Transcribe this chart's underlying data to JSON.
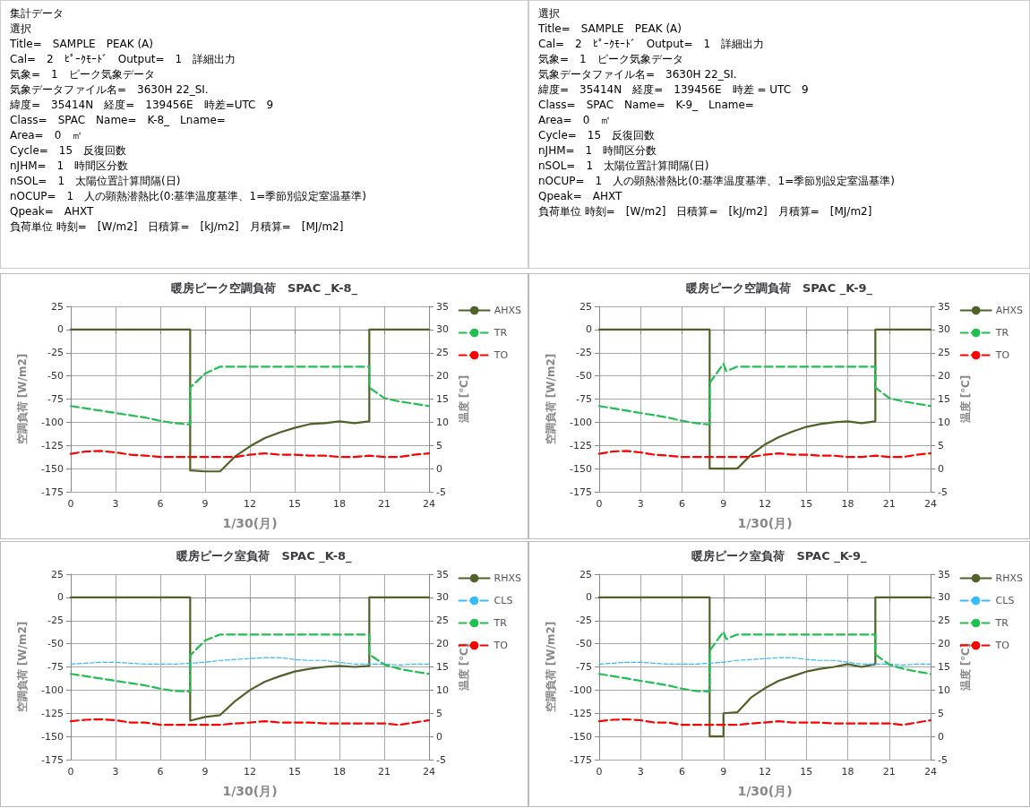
{
  "chart_data": [
    {
      "type": "other",
      "annotations": [
        "集計データ",
        "選択",
        "Title=　SAMPLE　PEAK (A)",
        "Cal=　2　ﾋﾟｰｸﾓｰﾄﾞ　Output=　1　詳細出力",
        "気象=　1　ピーク気象データ",
        "気象データファイル名=　3630H 22_SI.",
        "緯度=　35414N　経度=　139456E　時差=UTC　9",
        "Class=　SPAC　Name=　K-8_　Lname=",
        "Area=　0　㎡",
        "Cycle=　15　反復回数",
        "nJHM=　1　時間区分数",
        "nSOL=　1　太陽位置計算間隔(日)",
        "nOCUP=　1　人の顕熱潜熱比(0:基準温度基準、1=季節別設定室温基準)",
        "Qpeak=　AHXT",
        "負荷単位 時刻=　[W/m2]　日積算=　[kJ/m2]　月積算=　[MJ/m2]"
      ]
    },
    {
      "type": "other",
      "annotations": [
        "選択",
        "Title=　SAMPLE　PEAK (A)",
        "Cal=　2　ﾋﾟｰｸﾓｰﾄﾞ　Output=　1　詳細出力",
        "気象=　1　ピーク気象データ",
        "気象データファイル名=　3630H 22_SI.",
        "緯度=　35414N　経度=　139456E　時差 = UTC　9",
        "Class=　SPAC　Name=　K-9_　Lname=",
        "Area=　0　㎡",
        "Cycle=　15　反復回数",
        "nJHM=　1　時間区分数",
        "nSOL=　1　太陽位置計算間隔(日)",
        "nOCUP=　1　人の顕熱潜熱比(0:基準温度基準、1=季節別設定室温基準)",
        "Qpeak=　AHXT",
        "負荷単位 時刻=　[W/m2]　日積算=　[kJ/m2]　月積算=　[MJ/m2]"
      ]
    },
    {
      "type": "line",
      "title": "暖房ピーク空調負荷　SPAC _K-8_",
      "xlabel": "1/30(月)",
      "ylabel": "空調負荷 [W/m2]",
      "y2label": "温度 [℃]",
      "xlim": [
        0,
        24
      ],
      "xticks": [
        0,
        3,
        6,
        9,
        12,
        15,
        18,
        21,
        24
      ],
      "ylim": [
        -175,
        25
      ],
      "yticks": [
        -175,
        -150,
        -125,
        -100,
        -75,
        -50,
        -25,
        0,
        25
      ],
      "y2lim": [
        -5,
        35
      ],
      "y2ticks": [
        -5,
        0,
        5,
        10,
        15,
        20,
        25,
        30,
        35
      ],
      "grid": true,
      "legend": "right",
      "marker": "none",
      "series": [
        {
          "name": "AHXS",
          "color": "#4f6228",
          "line_style": "solid",
          "x": [
            0,
            1,
            2,
            3,
            4,
            5,
            6,
            7,
            8,
            8,
            9,
            10,
            11,
            12,
            13,
            14,
            15,
            16,
            17,
            18,
            19,
            20,
            20,
            21,
            22,
            23,
            24
          ],
          "values": [
            0,
            0,
            0,
            0,
            0,
            0,
            0,
            0,
            0,
            -152,
            -153,
            -153,
            -137,
            -126,
            -117,
            -111,
            -106,
            -102,
            -101,
            -99,
            -101,
            -99,
            0,
            0,
            0,
            0,
            0
          ]
        },
        {
          "name": "TR",
          "color": "#1fbf50",
          "line_style": "dashed",
          "axis": "y2",
          "x": [
            0,
            1,
            2,
            3,
            4,
            5,
            6,
            7,
            8,
            8,
            9,
            10,
            11,
            12,
            13,
            14,
            15,
            16,
            17,
            18,
            19,
            20,
            20,
            21,
            22,
            23,
            24
          ],
          "values": [
            13.5,
            13,
            12.5,
            12,
            11.5,
            11,
            10.3,
            9.8,
            9.5,
            17.5,
            20.5,
            22,
            22,
            22,
            22,
            22,
            22,
            22,
            22,
            22,
            22,
            22,
            17.5,
            15.2,
            14.5,
            14,
            13.5
          ]
        },
        {
          "name": "TO",
          "color": "#ff0000",
          "line_style": "dashed",
          "axis": "y2",
          "x": [
            0,
            1,
            2,
            3,
            4,
            5,
            6,
            7,
            8,
            9,
            10,
            11,
            12,
            13,
            14,
            15,
            16,
            17,
            18,
            19,
            20,
            21,
            22,
            23,
            24
          ],
          "values": [
            3.2,
            3.7,
            3.8,
            3.5,
            3,
            2.8,
            2.5,
            2.5,
            2.5,
            2.5,
            2.5,
            2.5,
            3,
            3.3,
            3,
            3,
            2.8,
            2.8,
            2.5,
            2.5,
            2.8,
            2.5,
            2.5,
            3,
            3.3
          ]
        }
      ]
    },
    {
      "type": "line",
      "title": "暖房ピーク空調負荷　SPAC _K-9_",
      "xlabel": "1/30(月)",
      "ylabel": "空調負荷 [W/m2]",
      "y2label": "温度 [℃]",
      "xlim": [
        0,
        24
      ],
      "xticks": [
        0,
        3,
        6,
        9,
        12,
        15,
        18,
        21,
        24
      ],
      "ylim": [
        -175,
        25
      ],
      "yticks": [
        -175,
        -150,
        -125,
        -100,
        -75,
        -50,
        -25,
        0,
        25
      ],
      "y2lim": [
        -5,
        35
      ],
      "y2ticks": [
        -5,
        0,
        5,
        10,
        15,
        20,
        25,
        30,
        35
      ],
      "grid": true,
      "legend": "right",
      "marker": "none",
      "series": [
        {
          "name": "AHXS",
          "color": "#4f6228",
          "line_style": "solid",
          "x": [
            0,
            1,
            2,
            3,
            4,
            5,
            6,
            7,
            8,
            8,
            9,
            10,
            11,
            12,
            13,
            14,
            15,
            16,
            17,
            18,
            19,
            20,
            20,
            21,
            22,
            23,
            24
          ],
          "values": [
            0,
            0,
            0,
            0,
            0,
            0,
            0,
            0,
            0,
            -150,
            -150,
            -150,
            -135,
            -124,
            -116,
            -110,
            -105,
            -102,
            -100,
            -99,
            -101,
            -99,
            0,
            0,
            0,
            0,
            0
          ]
        },
        {
          "name": "TR",
          "color": "#1fbf50",
          "line_style": "dashed",
          "axis": "y2",
          "x": [
            0,
            1,
            2,
            3,
            4,
            5,
            6,
            7,
            8,
            8,
            9,
            9.2,
            10,
            11,
            12,
            13,
            14,
            15,
            16,
            17,
            18,
            19,
            20,
            20,
            21,
            22,
            23,
            24
          ],
          "values": [
            13.5,
            13,
            12.5,
            12,
            11.5,
            11,
            10.3,
            9.8,
            9.5,
            18.5,
            22.6,
            21,
            22,
            22,
            22,
            22,
            22,
            22,
            22,
            22,
            22,
            22,
            22,
            17.5,
            15.2,
            14.5,
            14,
            13.5
          ]
        },
        {
          "name": "TO",
          "color": "#ff0000",
          "line_style": "dashed",
          "axis": "y2",
          "x": [
            0,
            1,
            2,
            3,
            4,
            5,
            6,
            7,
            8,
            9,
            10,
            11,
            12,
            13,
            14,
            15,
            16,
            17,
            18,
            19,
            20,
            21,
            22,
            23,
            24
          ],
          "values": [
            3.2,
            3.7,
            3.8,
            3.5,
            3,
            2.8,
            2.5,
            2.5,
            2.5,
            2.5,
            2.5,
            2.5,
            3,
            3.3,
            3,
            3,
            2.8,
            2.8,
            2.5,
            2.5,
            2.8,
            2.5,
            2.5,
            3,
            3.3
          ]
        }
      ]
    },
    {
      "type": "line",
      "title": "暖房ピーク室負荷　SPAC _K-8_",
      "xlabel": "1/30(月)",
      "ylabel": "空調負荷 [W/m2]",
      "y2label": "温度 [℃]",
      "xlim": [
        0,
        24
      ],
      "xticks": [
        0,
        3,
        6,
        9,
        12,
        15,
        18,
        21,
        24
      ],
      "ylim": [
        -175,
        25
      ],
      "yticks": [
        -175,
        -150,
        -125,
        -100,
        -75,
        -50,
        -25,
        0,
        25
      ],
      "y2lim": [
        -5,
        35
      ],
      "y2ticks": [
        -5,
        0,
        5,
        10,
        15,
        20,
        25,
        30,
        35
      ],
      "grid": true,
      "legend": "right",
      "marker": "none",
      "series": [
        {
          "name": "RHXS",
          "color": "#4f6228",
          "line_style": "solid",
          "x": [
            0,
            1,
            2,
            3,
            4,
            5,
            6,
            7,
            8,
            8,
            9,
            10,
            11,
            12,
            13,
            14,
            15,
            16,
            17,
            18,
            19,
            20,
            20,
            21,
            22,
            23,
            24
          ],
          "values": [
            0,
            0,
            0,
            0,
            0,
            0,
            0,
            0,
            0,
            -133,
            -129,
            -127,
            -112,
            -100,
            -91,
            -85,
            -80,
            -77,
            -75,
            -74,
            -75,
            -74,
            0,
            0,
            0,
            0,
            0
          ]
        },
        {
          "name": "CLS",
          "color": "#33bbff",
          "line_style": "dashed",
          "x": [
            0,
            1,
            2,
            3,
            4,
            5,
            6,
            7,
            8,
            9,
            10,
            11,
            12,
            13,
            14,
            15,
            16,
            17,
            18,
            19,
            20,
            21,
            22,
            23,
            24
          ],
          "values": [
            -72,
            -71,
            -70,
            -70,
            -71,
            -72,
            -72,
            -72,
            -71,
            -70,
            -68,
            -67,
            -66,
            -65,
            -65,
            -67,
            -68,
            -68,
            -70,
            -72,
            -72,
            -72,
            -73,
            -72,
            -72
          ]
        },
        {
          "name": "TR",
          "color": "#1fbf50",
          "line_style": "dashed",
          "axis": "y2",
          "x": [
            0,
            1,
            2,
            3,
            4,
            5,
            6,
            7,
            8,
            8,
            9,
            10,
            11,
            12,
            13,
            14,
            15,
            16,
            17,
            18,
            19,
            20,
            20,
            21,
            22,
            23,
            24
          ],
          "values": [
            13.5,
            13,
            12.5,
            12,
            11.5,
            11,
            10.3,
            9.8,
            9.7,
            17.5,
            20.7,
            22,
            22,
            22,
            22,
            22,
            22,
            22,
            22,
            22,
            22,
            22,
            17.7,
            15.5,
            14.6,
            14,
            13.5
          ]
        },
        {
          "name": "TO",
          "color": "#ff0000",
          "line_style": "dashed",
          "axis": "y2",
          "x": [
            0,
            1,
            2,
            3,
            4,
            5,
            6,
            7,
            8,
            9,
            10,
            11,
            12,
            13,
            14,
            15,
            16,
            17,
            18,
            19,
            20,
            21,
            22,
            23,
            24
          ],
          "values": [
            3.3,
            3.6,
            3.7,
            3.5,
            3,
            3,
            2.5,
            2.5,
            2.5,
            2.5,
            2.5,
            2.8,
            3,
            3.3,
            3,
            3,
            3,
            2.8,
            2.8,
            2.8,
            2.8,
            2.8,
            2.5,
            3,
            3.5
          ]
        }
      ]
    },
    {
      "type": "line",
      "title": "暖房ピーク室負荷　SPAC _K-9_",
      "xlabel": "1/30(月)",
      "ylabel": "空調負荷 [W/m2]",
      "y2label": "温度 [℃]",
      "xlim": [
        0,
        24
      ],
      "xticks": [
        0,
        3,
        6,
        9,
        12,
        15,
        18,
        21,
        24
      ],
      "ylim": [
        -175,
        25
      ],
      "yticks": [
        -175,
        -150,
        -125,
        -100,
        -75,
        -50,
        -25,
        0,
        25
      ],
      "y2lim": [
        -5,
        35
      ],
      "y2ticks": [
        -5,
        0,
        5,
        10,
        15,
        20,
        25,
        30,
        35
      ],
      "grid": true,
      "legend": "right",
      "marker": "none",
      "series": [
        {
          "name": "RHXS",
          "color": "#4f6228",
          "line_style": "solid",
          "x": [
            0,
            1,
            2,
            3,
            4,
            5,
            6,
            7,
            8,
            8,
            9,
            9,
            10,
            11,
            12,
            13,
            14,
            15,
            16,
            17,
            18,
            19,
            20,
            20,
            21,
            22,
            23,
            24
          ],
          "values": [
            0,
            0,
            0,
            0,
            0,
            0,
            0,
            0,
            0,
            -150,
            -150,
            -125,
            -124,
            -108,
            -98,
            -90,
            -85,
            -80,
            -77,
            -75,
            -72,
            -75,
            -72,
            0,
            0,
            0,
            0,
            0
          ]
        },
        {
          "name": "CLS",
          "color": "#33bbff",
          "line_style": "dashed",
          "x": [
            0,
            1,
            2,
            3,
            4,
            5,
            6,
            7,
            8,
            9,
            10,
            11,
            12,
            13,
            14,
            15,
            16,
            17,
            18,
            19,
            20,
            21,
            22,
            23,
            24
          ],
          "values": [
            -72,
            -71,
            -70,
            -70,
            -71,
            -72,
            -72,
            -72,
            -71,
            -70,
            -68,
            -67,
            -66,
            -65,
            -65,
            -67,
            -68,
            -68,
            -70,
            -72,
            -72,
            -72,
            -73,
            -72,
            -72
          ]
        },
        {
          "name": "TR",
          "color": "#1fbf50",
          "line_style": "dashed",
          "axis": "y2",
          "x": [
            0,
            1,
            2,
            3,
            4,
            5,
            6,
            7,
            8,
            8,
            9,
            9.2,
            10,
            11,
            12,
            13,
            14,
            15,
            16,
            17,
            18,
            19,
            20,
            20,
            21,
            22,
            23,
            24
          ],
          "values": [
            13.5,
            13,
            12.5,
            12,
            11.5,
            11,
            10.3,
            9.8,
            9.7,
            18.5,
            22.6,
            21,
            22,
            22,
            22,
            22,
            22,
            22,
            22,
            22,
            22,
            22,
            22,
            17.7,
            15.5,
            14.6,
            14,
            13.5
          ]
        },
        {
          "name": "TO",
          "color": "#ff0000",
          "line_style": "dashed",
          "axis": "y2",
          "x": [
            0,
            1,
            2,
            3,
            4,
            5,
            6,
            7,
            8,
            9,
            10,
            11,
            12,
            13,
            14,
            15,
            16,
            17,
            18,
            19,
            20,
            21,
            22,
            23,
            24
          ],
          "values": [
            3.3,
            3.6,
            3.7,
            3.5,
            3,
            3,
            2.5,
            2.5,
            2.5,
            2.5,
            2.5,
            2.8,
            3,
            3.3,
            3,
            3,
            3,
            2.8,
            2.8,
            2.8,
            2.8,
            2.8,
            2.5,
            3,
            3.5
          ]
        }
      ]
    }
  ]
}
